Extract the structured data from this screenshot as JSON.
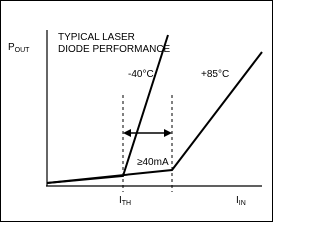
{
  "title": [
    "TYPICAL LASER",
    "DIODE PERFORMANCE"
  ],
  "y_axis_label": {
    "main": "P",
    "sub": "OUT"
  },
  "x_axis_label": {
    "main": "I",
    "sub": "IN"
  },
  "threshold_label": {
    "main": "I",
    "sub": "TH"
  },
  "curves": [
    {
      "label": "-40°C"
    },
    {
      "label": "+85°C"
    }
  ],
  "current_shift_label": "≥40mA"
}
